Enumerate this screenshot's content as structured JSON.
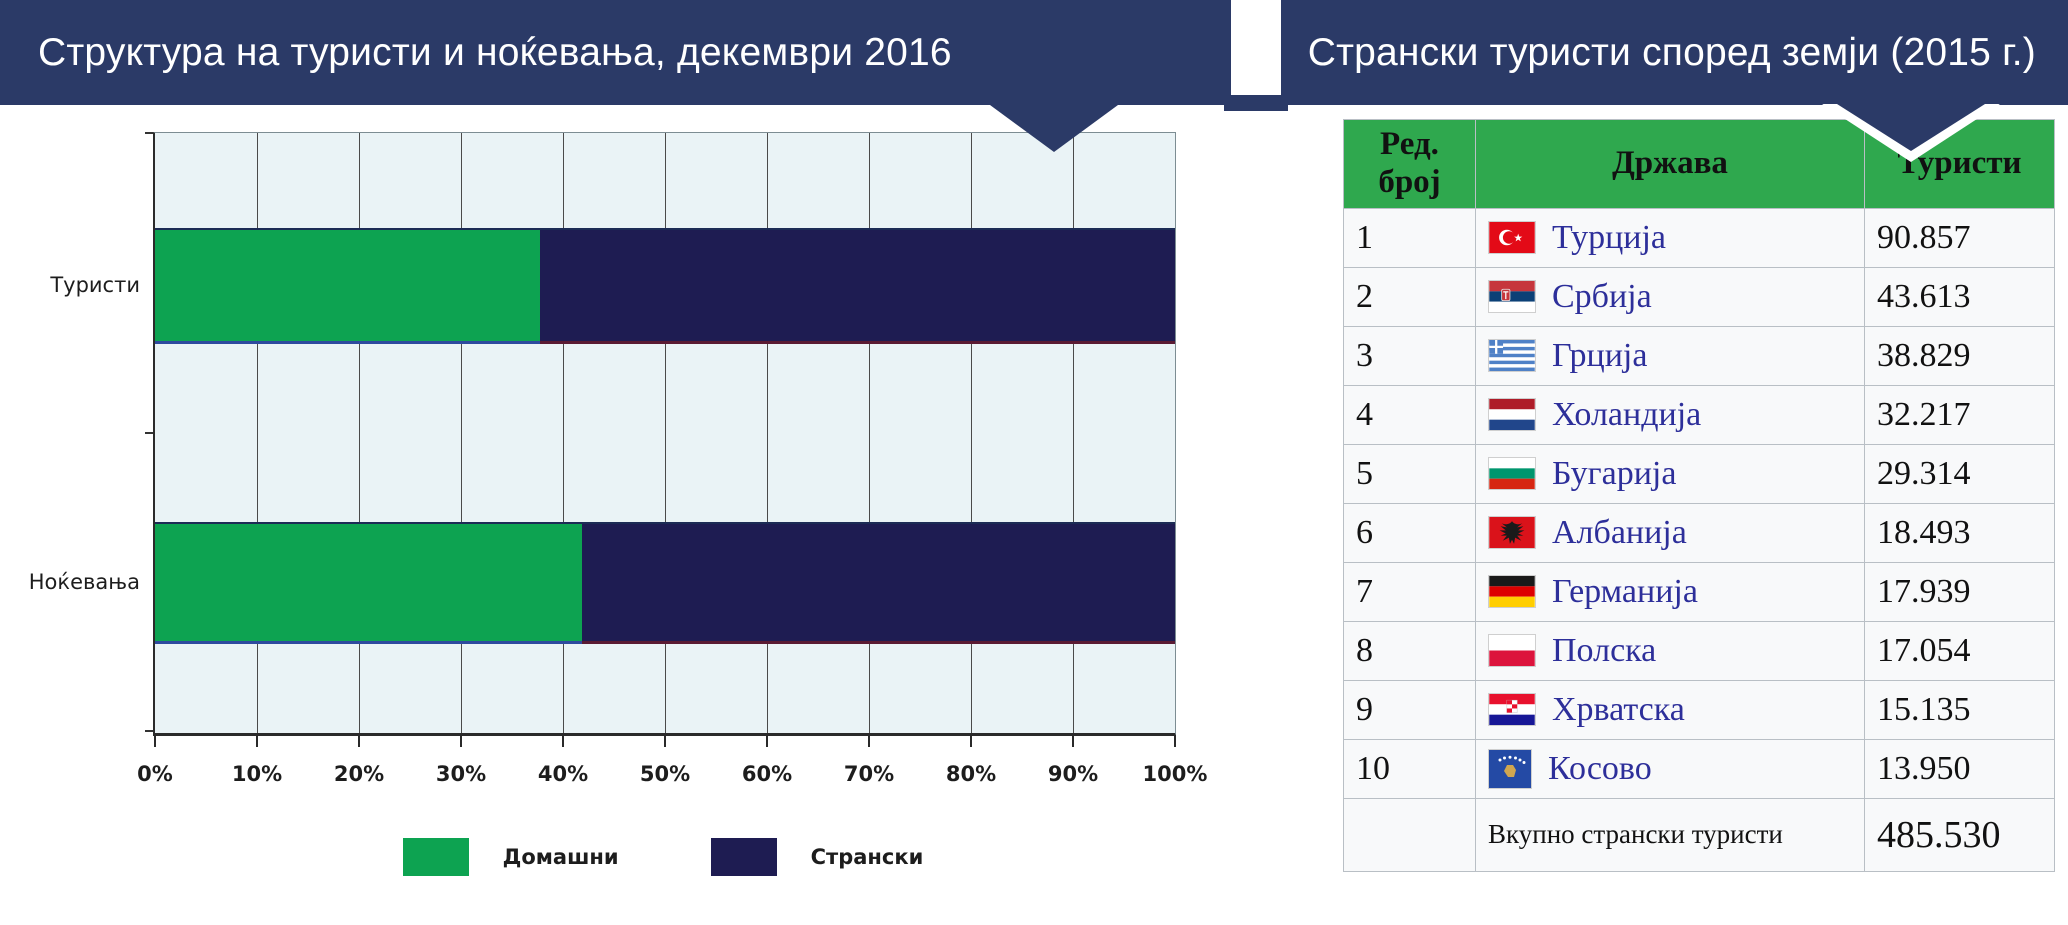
{
  "header": {
    "left_title": "Структура на туристи и ноќевања, декември 2016",
    "right_title": "Странски туристи според земји (2015 г.)",
    "band_color": "#2b3a67"
  },
  "chart_data": {
    "type": "bar",
    "stacked": true,
    "orientation": "horizontal",
    "title": "Структура на туристи и ноќевања, декември 2016",
    "categories": [
      "Туристи",
      "Ноќевања"
    ],
    "series": [
      {
        "name": "Домашни",
        "color": "#0da351",
        "values": [
          37.7,
          41.9
        ]
      },
      {
        "name": "Странски",
        "color": "#1e1c52",
        "values": [
          62.3,
          58.1
        ]
      }
    ],
    "x_ticks": [
      "0%",
      "10%",
      "20%",
      "30%",
      "40%",
      "50%",
      "60%",
      "70%",
      "80%",
      "90%",
      "100%"
    ],
    "xlim": [
      0,
      100
    ],
    "unit": "percent",
    "grid": true,
    "legend_position": "bottom",
    "plot_bg": "#eaf3f6"
  },
  "table": {
    "title": "Странски туристи според земји (2015 г.)",
    "header_bg": "#2fa84e",
    "columns": {
      "rank": "Ред. број",
      "country": "Држава",
      "tourists": "Туристи"
    },
    "rows": [
      {
        "rank": "1",
        "flag": "turkey",
        "country": "Турција",
        "value": "90.857"
      },
      {
        "rank": "2",
        "flag": "serbia",
        "country": "Србија",
        "value": "43.613"
      },
      {
        "rank": "3",
        "flag": "greece",
        "country": "Грција",
        "value": "38.829"
      },
      {
        "rank": "4",
        "flag": "netherlands",
        "country": "Холандија",
        "value": "32.217"
      },
      {
        "rank": "5",
        "flag": "bulgaria",
        "country": "Бугарија",
        "value": "29.314"
      },
      {
        "rank": "6",
        "flag": "albania",
        "country": "Албанија",
        "value": "18.493"
      },
      {
        "rank": "7",
        "flag": "germany",
        "country": "Германија",
        "value": "17.939"
      },
      {
        "rank": "8",
        "flag": "poland",
        "country": "Полска",
        "value": "17.054"
      },
      {
        "rank": "9",
        "flag": "croatia",
        "country": "Хрватска",
        "value": "15.135"
      },
      {
        "rank": "10",
        "flag": "kosovo",
        "country": "Косово",
        "value": "13.950"
      }
    ],
    "total_label": "Вкупно странски туристи",
    "total_value": "485.530"
  }
}
